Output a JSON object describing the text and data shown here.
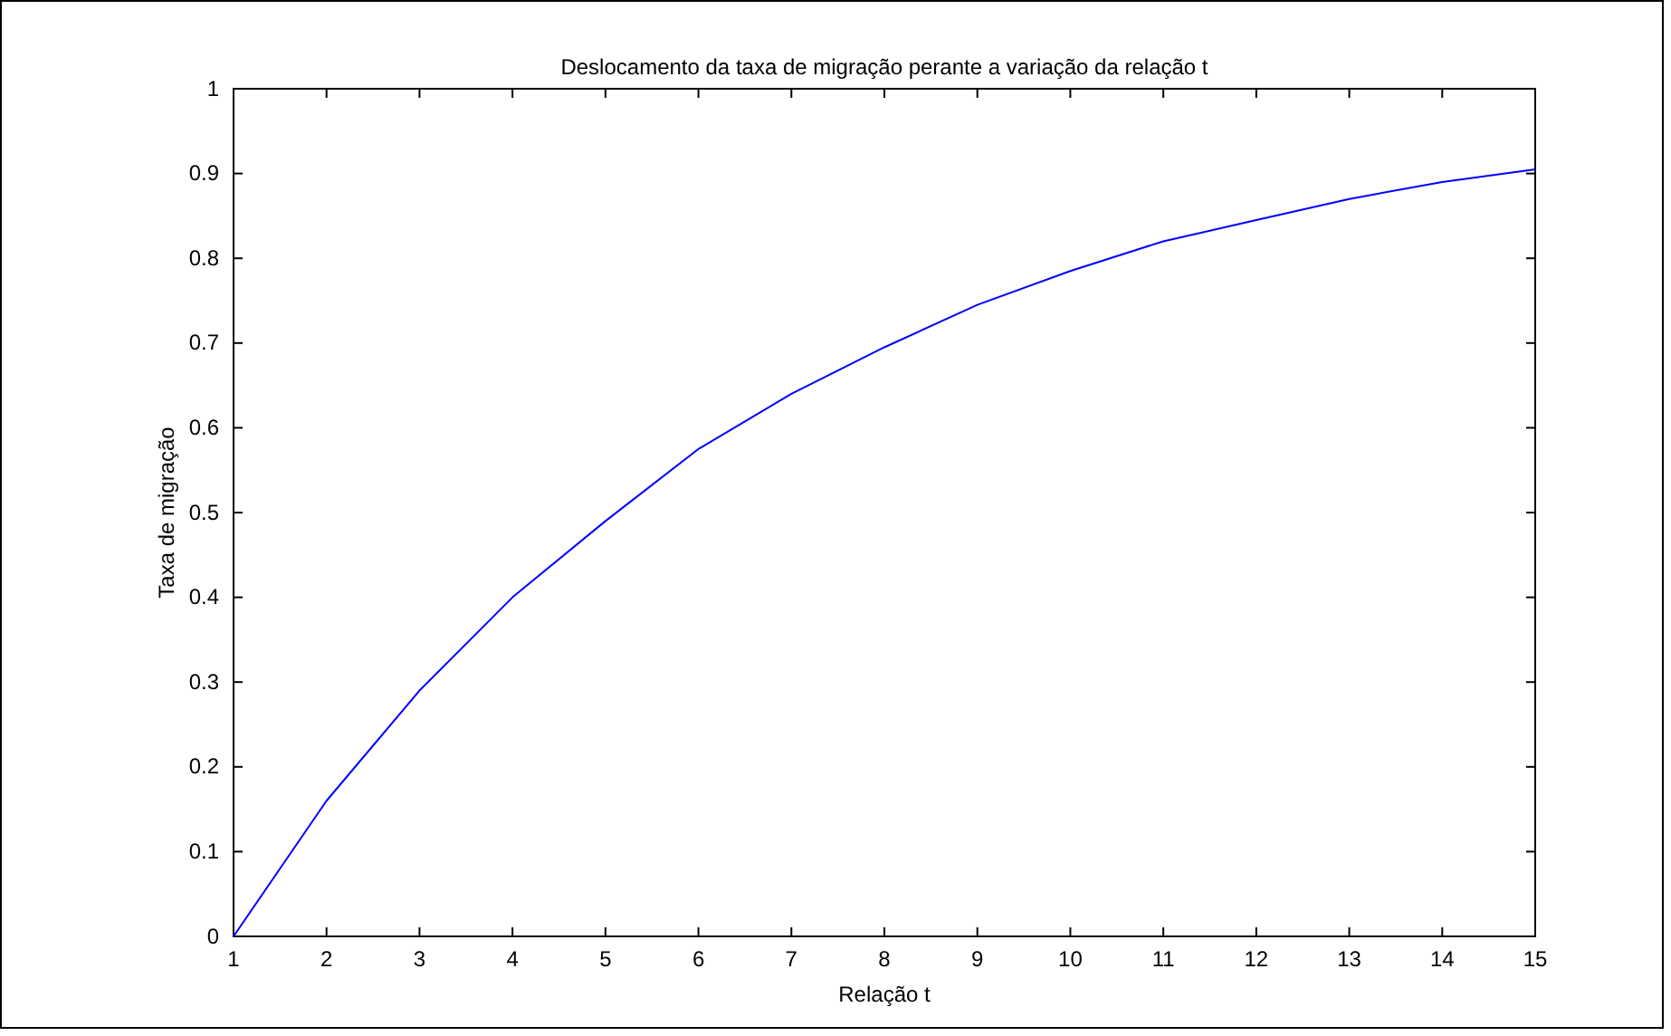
{
  "chart_data": {
    "type": "line",
    "title": "Deslocamento da taxa de migração perante a variação da relação t",
    "xlabel": "Relação t",
    "ylabel": "Taxa de migração",
    "x": [
      1,
      2,
      3,
      4,
      5,
      6,
      7,
      8,
      9,
      10,
      11,
      12,
      13,
      14,
      15
    ],
    "series": [
      {
        "color": "#0000ff",
        "values": [
          0,
          0.16,
          0.29,
          0.4,
          0.49,
          0.575,
          0.64,
          0.695,
          0.745,
          0.785,
          0.82,
          0.845,
          0.87,
          0.89,
          0.905
        ]
      }
    ],
    "xlim": [
      1,
      15
    ],
    "xticks": [
      1,
      2,
      3,
      4,
      5,
      6,
      7,
      8,
      9,
      10,
      11,
      12,
      13,
      14,
      15
    ],
    "ylim": [
      0,
      1
    ],
    "yticks": [
      0,
      0.1,
      0.2,
      0.3,
      0.4,
      0.5,
      0.6,
      0.7,
      0.8,
      0.9,
      1
    ],
    "grid": false,
    "marker": "none",
    "line_style": "solid"
  }
}
